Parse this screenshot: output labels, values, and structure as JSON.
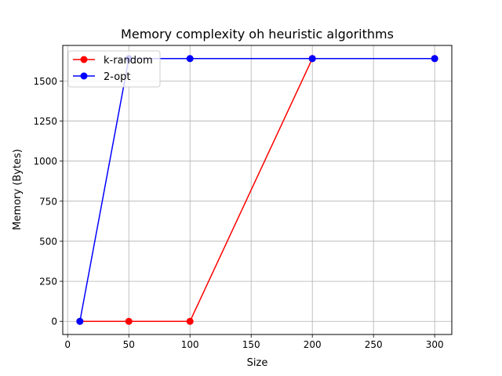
{
  "chart_data": {
    "type": "line",
    "title": "Memory complexity oh heuristic algorithms",
    "xlabel": "Size",
    "ylabel": "Memory (Bytes)",
    "x": [
      10,
      50,
      100,
      200,
      300
    ],
    "series": [
      {
        "name": "k-random",
        "color": "#ff0000",
        "values": [
          0,
          0,
          0,
          1640,
          1640
        ]
      },
      {
        "name": "2-opt",
        "color": "#0000ff",
        "values": [
          0,
          1640,
          1640,
          1640,
          1640
        ]
      }
    ],
    "xlim": [
      -4,
      314
    ],
    "ylim": [
      -82,
      1722
    ],
    "xticks": [
      0,
      50,
      100,
      150,
      200,
      250,
      300
    ],
    "xtick_labels": [
      "0",
      "50",
      "100",
      "150",
      "200",
      "250",
      "300"
    ],
    "yticks": [
      0,
      250,
      500,
      750,
      1000,
      1250,
      1500
    ],
    "ytick_labels": [
      "0",
      "250",
      "500",
      "750",
      "1000",
      "1250",
      "1500"
    ],
    "grid": true,
    "legend": "top-left"
  }
}
